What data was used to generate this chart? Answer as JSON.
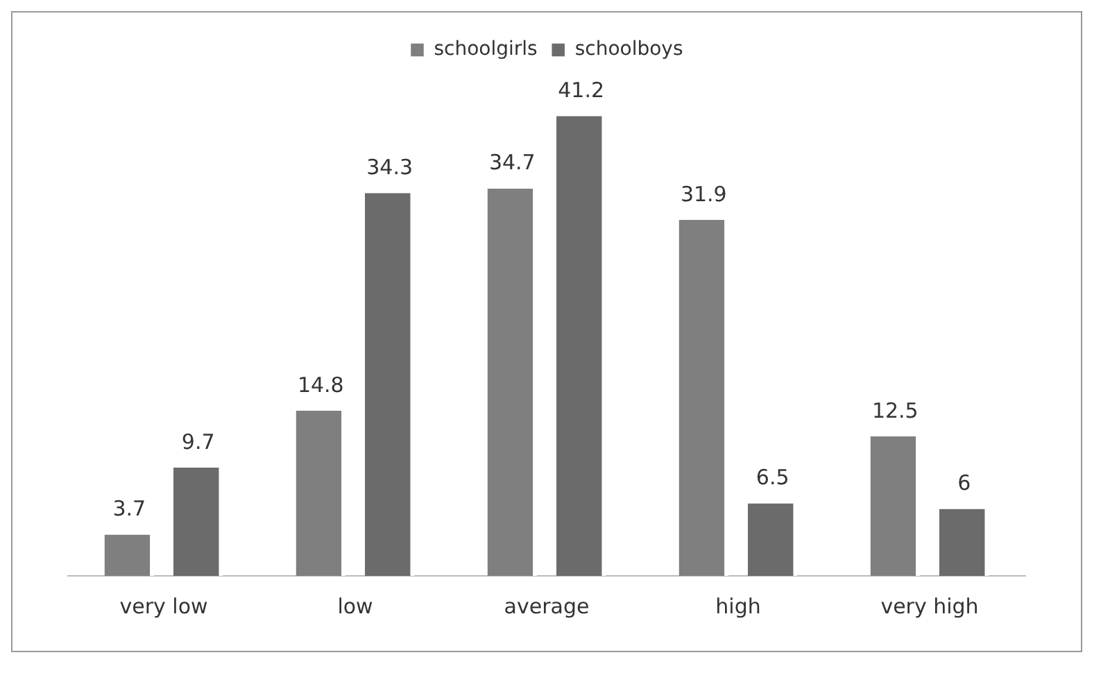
{
  "chart_data": {
    "type": "bar",
    "categories": [
      "very low",
      "low",
      "average",
      "high",
      "very high"
    ],
    "series": [
      {
        "name": "schoolgirls",
        "color": "#7f7f7f",
        "values": [
          3.7,
          14.8,
          34.7,
          31.9,
          12.5
        ]
      },
      {
        "name": "schoolboys",
        "color": "#6b6b6b",
        "values": [
          9.7,
          34.3,
          41.2,
          6.5,
          6
        ]
      }
    ],
    "data_labels": true,
    "legend": "top",
    "grid": false
  }
}
